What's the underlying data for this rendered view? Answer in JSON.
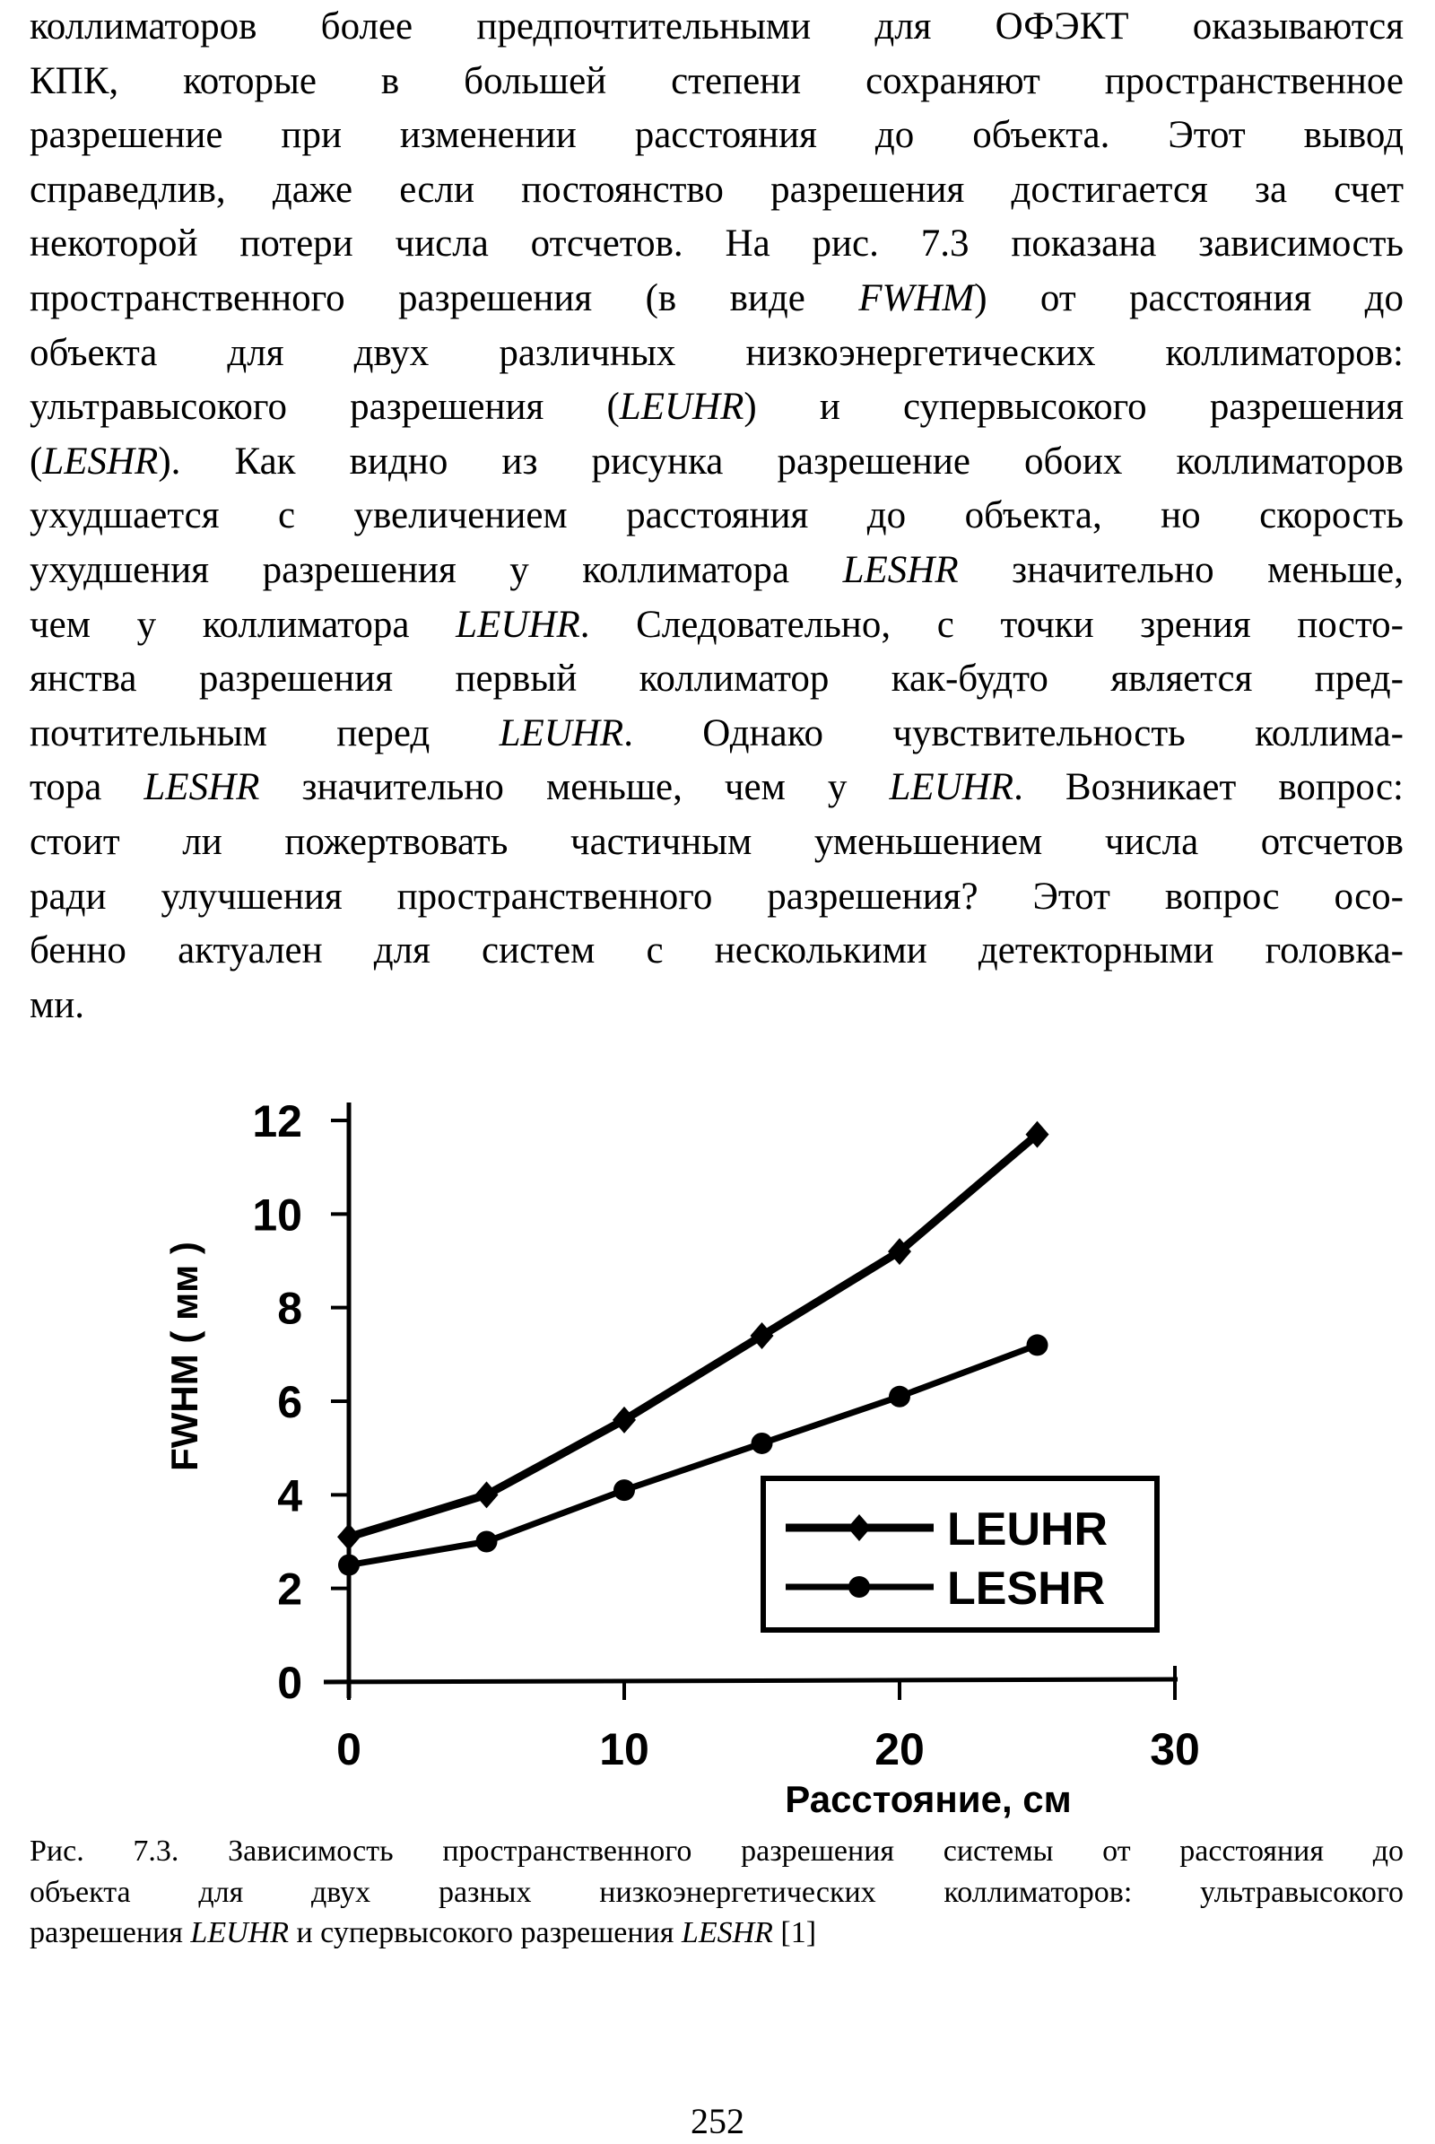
{
  "body_lines": [
    [
      {
        "t": "коллиматоров более предпочтительными для ОФЭКТ оказываются"
      }
    ],
    [
      {
        "t": "КПК, которые в большей степени сохраняют пространственное"
      }
    ],
    [
      {
        "t": "разрешение при изменении расстояния до объекта. Этот вывод"
      }
    ],
    [
      {
        "t": "справедлив, даже если постоянство разрешения достигается за счет"
      }
    ],
    [
      {
        "t": "некоторой потери числа отсчетов. На рис. 7.3 показана зависимость"
      }
    ],
    [
      {
        "t": "пространственного разрешения (в виде "
      },
      {
        "t": "FWHM",
        "i": true
      },
      {
        "t": ") от расстояния до"
      }
    ],
    [
      {
        "t": "объекта для двух различных низкоэнергетических коллиматоров:"
      }
    ],
    [
      {
        "t": "ультравысокого разрешения ("
      },
      {
        "t": "LEUHR",
        "i": true
      },
      {
        "t": ") и супервысокого разрешения"
      }
    ],
    [
      {
        "t": "("
      },
      {
        "t": "LESHR",
        "i": true
      },
      {
        "t": "). Как видно из рисунка разрешение обоих коллиматоров"
      }
    ],
    [
      {
        "t": "ухудшается с увеличением расстояния до объекта, но скорость"
      }
    ],
    [
      {
        "t": "ухудшения разрешения у коллиматора "
      },
      {
        "t": "LESHR",
        "i": true
      },
      {
        "t": " значительно меньше,"
      }
    ],
    [
      {
        "t": "чем у коллиматора "
      },
      {
        "t": "LEUHR",
        "i": true
      },
      {
        "t": ". Следовательно, с точки зрения посто-"
      }
    ],
    [
      {
        "t": "янства разрешения первый коллиматор как-будто является пред-"
      }
    ],
    [
      {
        "t": "почтительным перед "
      },
      {
        "t": "LEUHR",
        "i": true
      },
      {
        "t": ". Однако чувствительность коллима-"
      }
    ],
    [
      {
        "t": "тора "
      },
      {
        "t": "LESHR",
        "i": true
      },
      {
        "t": " значительно меньше, чем у "
      },
      {
        "t": "LEUHR",
        "i": true
      },
      {
        "t": ". Возникает вопрос:"
      }
    ],
    [
      {
        "t": "стоит ли пожертвовать частичным уменьшением числа отсчетов"
      }
    ],
    [
      {
        "t": "ради улучшения пространственного разрешения? Этот вопрос осо-"
      }
    ],
    [
      {
        "t": "бенно актуален для систем с несколькими детекторными головка-"
      }
    ],
    [
      {
        "t": "ми."
      }
    ]
  ],
  "caption_lines": [
    [
      {
        "t": "Рис. 7.3. Зависимость пространственного разрешения системы от расстояния до"
      }
    ],
    [
      {
        "t": "объекта для двух разных низкоэнергетических коллиматоров:  ультравысокого"
      }
    ],
    [
      {
        "t": "разрешения "
      },
      {
        "t": "LEUHR",
        "i": true
      },
      {
        "t": " и супервысокого разрешения "
      },
      {
        "t": "LESHR",
        "i": true
      },
      {
        "t": " [1]"
      }
    ]
  ],
  "page_number": "252",
  "chart_data": {
    "type": "line",
    "xlabel": "Расстояние, см",
    "ylabel": "FWHM ( мм )",
    "xlim": [
      0,
      30
    ],
    "ylim": [
      0,
      12
    ],
    "xticks": [
      "0",
      "10",
      "20",
      "30"
    ],
    "yticks": [
      "0",
      "2",
      "4",
      "6",
      "8",
      "10",
      "12"
    ],
    "grid": false,
    "legend_position": "bottom-right",
    "x": [
      0,
      5,
      10,
      15,
      20,
      25
    ],
    "series": [
      {
        "name": "LEUHR",
        "marker": "diamond",
        "values": [
          3.1,
          4.0,
          5.6,
          7.4,
          9.2,
          11.7
        ]
      },
      {
        "name": "LESHR",
        "marker": "circle",
        "values": [
          2.5,
          3.0,
          4.1,
          5.1,
          6.1,
          7.2
        ]
      }
    ]
  }
}
